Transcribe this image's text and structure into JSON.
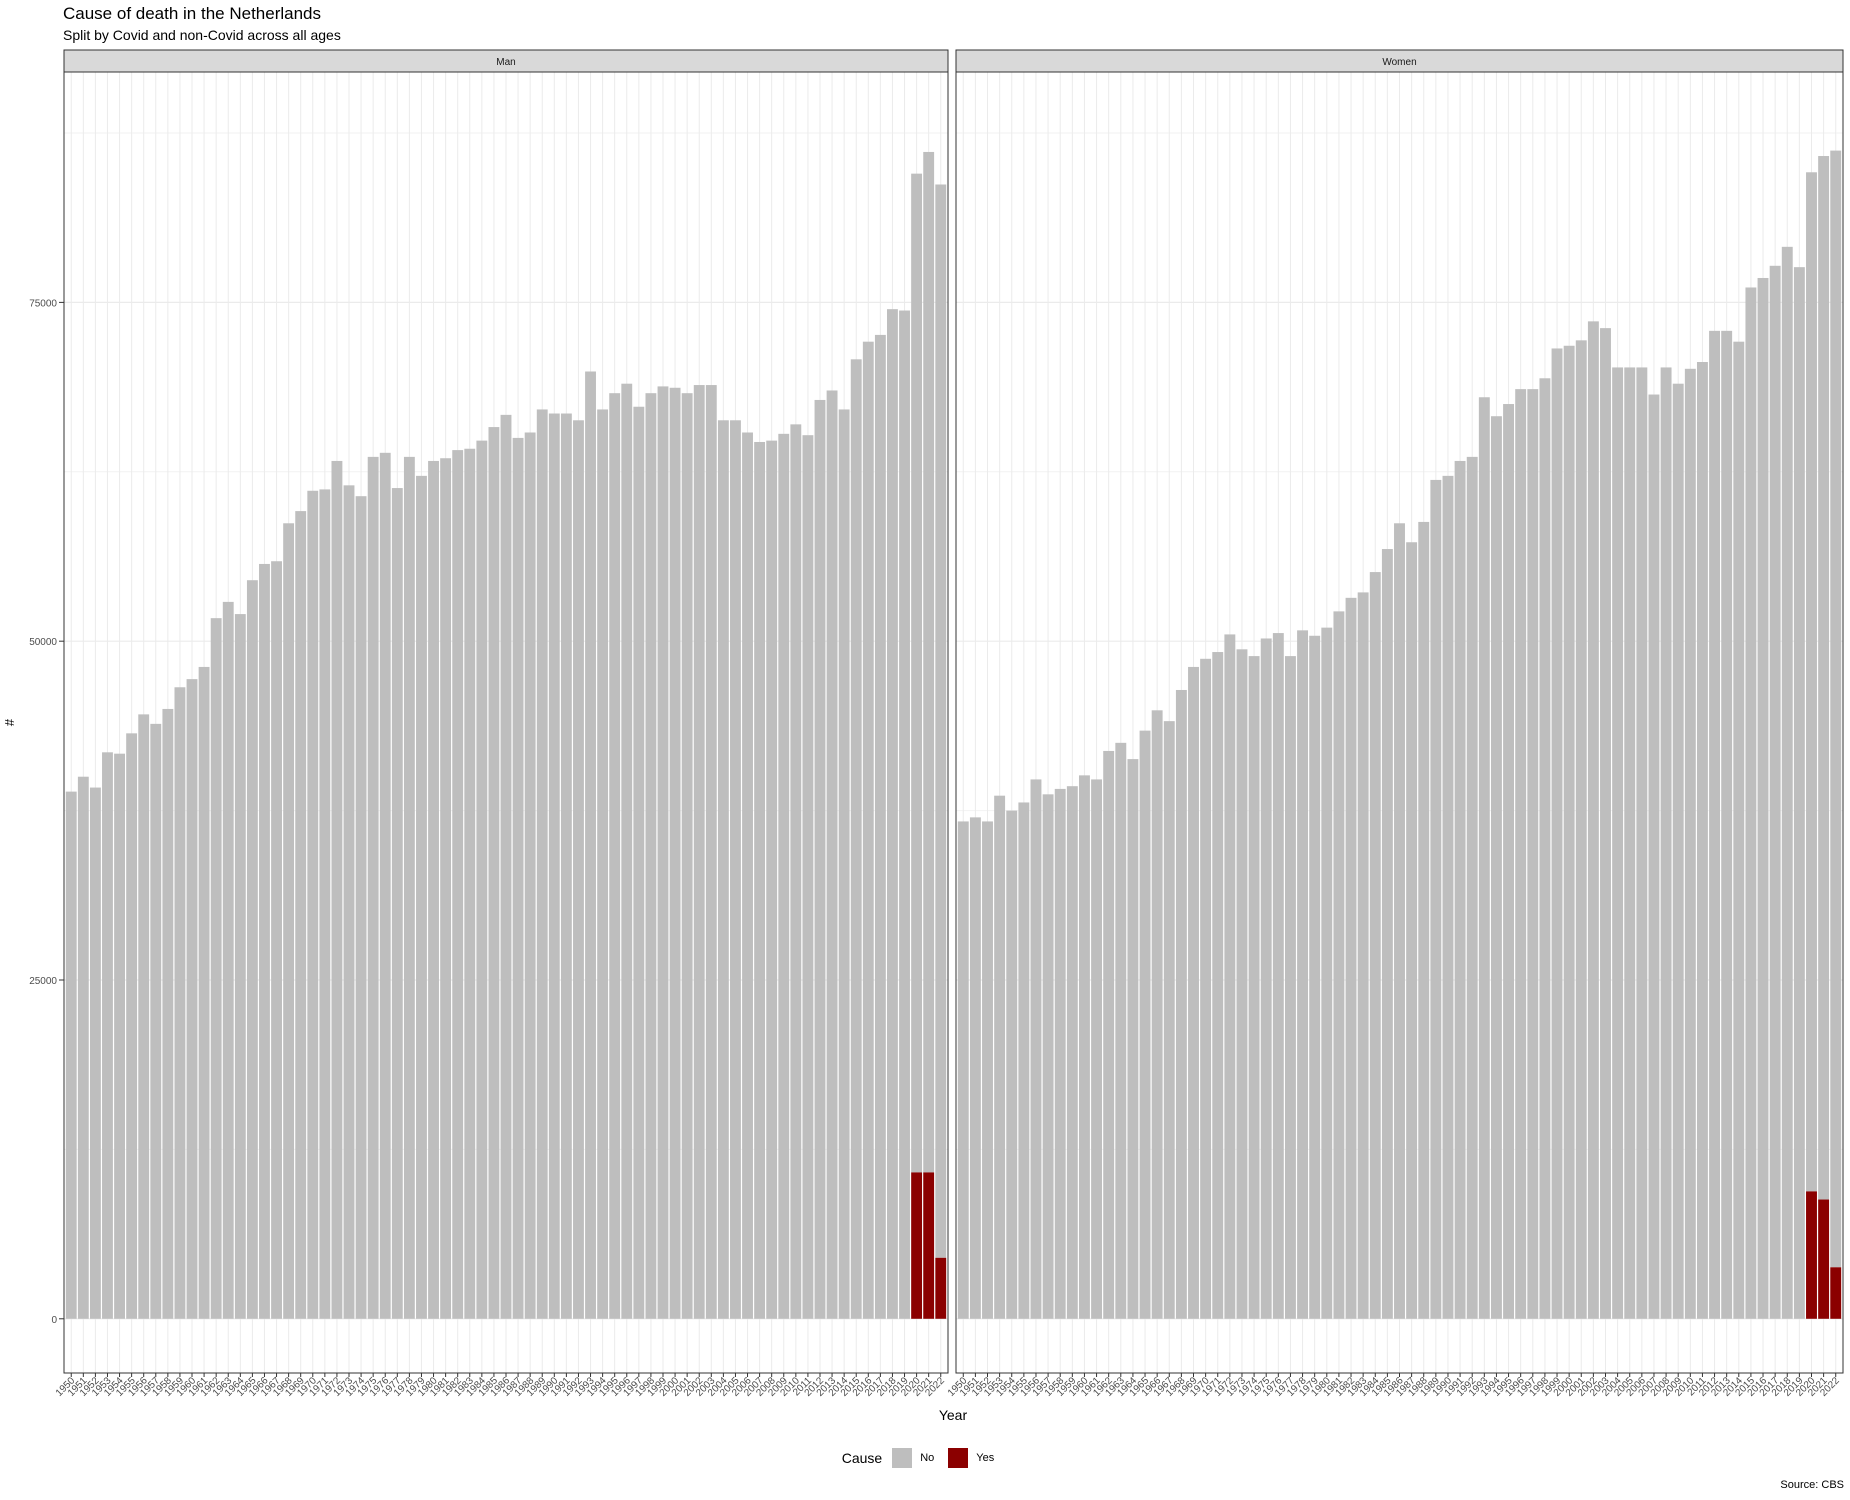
{
  "title": "Cause of death in the Netherlands",
  "subtitle": "Split by Covid and non-Covid across all ages",
  "caption": "Source: CBS",
  "colors": {
    "No": "#bebebe",
    "Yes": "#8b0000",
    "strip_bg": "#d9d9d9",
    "grid": "#ebebeb"
  },
  "chart_data": {
    "type": "bar",
    "stacked": true,
    "xlabel": "Year",
    "ylabel": "#",
    "ylim": [
      -4000,
      92000
    ],
    "yticks": [
      0,
      25000,
      50000,
      75000
    ],
    "grid": true,
    "legend": {
      "title": "Cause",
      "position": "bottom",
      "entries": [
        "No",
        "Yes"
      ]
    },
    "years": [
      1950,
      1951,
      1952,
      1953,
      1954,
      1955,
      1956,
      1957,
      1958,
      1959,
      1960,
      1961,
      1962,
      1963,
      1964,
      1965,
      1966,
      1967,
      1968,
      1969,
      1970,
      1971,
      1972,
      1973,
      1974,
      1975,
      1976,
      1977,
      1978,
      1979,
      1980,
      1981,
      1982,
      1983,
      1984,
      1985,
      1986,
      1987,
      1988,
      1989,
      1990,
      1991,
      1992,
      1993,
      1994,
      1995,
      1996,
      1997,
      1998,
      1999,
      2000,
      2001,
      2002,
      2003,
      2004,
      2005,
      2006,
      2007,
      2008,
      2009,
      2010,
      2011,
      2012,
      2013,
      2014,
      2015,
      2016,
      2017,
      2018,
      2019,
      2020,
      2021,
      2022
    ],
    "panels": [
      {
        "name": "Man",
        "series": [
          {
            "name": "No",
            "values": [
              38900,
              40000,
              39200,
              41800,
              41700,
              43200,
              44600,
              43900,
              45000,
              46600,
              47200,
              48100,
              51700,
              52900,
              52000,
              54500,
              55700,
              55900,
              58700,
              59600,
              61100,
              61200,
              63300,
              61500,
              60700,
              63600,
              63900,
              61300,
              63600,
              62200,
              63300,
              63500,
              64100,
              64200,
              64800,
              65800,
              66700,
              65000,
              65400,
              67100,
              66800,
              66800,
              66300,
              69900,
              67100,
              68300,
              69000,
              67300,
              68300,
              68800,
              68700,
              68300,
              68900,
              68900,
              66300,
              66300,
              65400,
              64700,
              64800,
              65300,
              66000,
              65200,
              67800,
              68500,
              67100,
              70800,
              72100,
              72600,
              74500,
              74400,
              73700,
              75300,
              79200
            ]
          },
          {
            "name": "Yes",
            "values": [
              0,
              0,
              0,
              0,
              0,
              0,
              0,
              0,
              0,
              0,
              0,
              0,
              0,
              0,
              0,
              0,
              0,
              0,
              0,
              0,
              0,
              0,
              0,
              0,
              0,
              0,
              0,
              0,
              0,
              0,
              0,
              0,
              0,
              0,
              0,
              0,
              0,
              0,
              0,
              0,
              0,
              0,
              0,
              0,
              0,
              0,
              0,
              0,
              0,
              0,
              0,
              0,
              0,
              0,
              0,
              0,
              0,
              0,
              0,
              0,
              0,
              0,
              0,
              0,
              0,
              0,
              0,
              0,
              0,
              0,
              10800,
              10800,
              4500
            ]
          }
        ]
      },
      {
        "name": "Women",
        "series": [
          {
            "name": "No",
            "values": [
              36700,
              37000,
              36700,
              38600,
              37500,
              38100,
              39800,
              38700,
              39100,
              39300,
              40100,
              39800,
              41900,
              42500,
              41300,
              43400,
              44900,
              44100,
              46400,
              48100,
              48700,
              49200,
              50500,
              49400,
              48900,
              50200,
              50600,
              48900,
              50800,
              50400,
              51000,
              52200,
              53200,
              53600,
              55100,
              56800,
              58700,
              57300,
              58800,
              61900,
              62200,
              63300,
              63600,
              68000,
              66600,
              67500,
              68600,
              68600,
              69400,
              71600,
              71800,
              72200,
              73600,
              73100,
              70200,
              70200,
              70200,
              68200,
              70200,
              69000,
              70100,
              70600,
              72900,
              72900,
              72100,
              76100,
              76800,
              77700,
              79100,
              77600,
              75200,
              77000,
              82400
            ]
          },
          {
            "name": "Yes",
            "values": [
              0,
              0,
              0,
              0,
              0,
              0,
              0,
              0,
              0,
              0,
              0,
              0,
              0,
              0,
              0,
              0,
              0,
              0,
              0,
              0,
              0,
              0,
              0,
              0,
              0,
              0,
              0,
              0,
              0,
              0,
              0,
              0,
              0,
              0,
              0,
              0,
              0,
              0,
              0,
              0,
              0,
              0,
              0,
              0,
              0,
              0,
              0,
              0,
              0,
              0,
              0,
              0,
              0,
              0,
              0,
              0,
              0,
              0,
              0,
              0,
              0,
              0,
              0,
              0,
              0,
              0,
              0,
              0,
              0,
              0,
              9400,
              8800,
              3800
            ]
          }
        ]
      }
    ]
  }
}
